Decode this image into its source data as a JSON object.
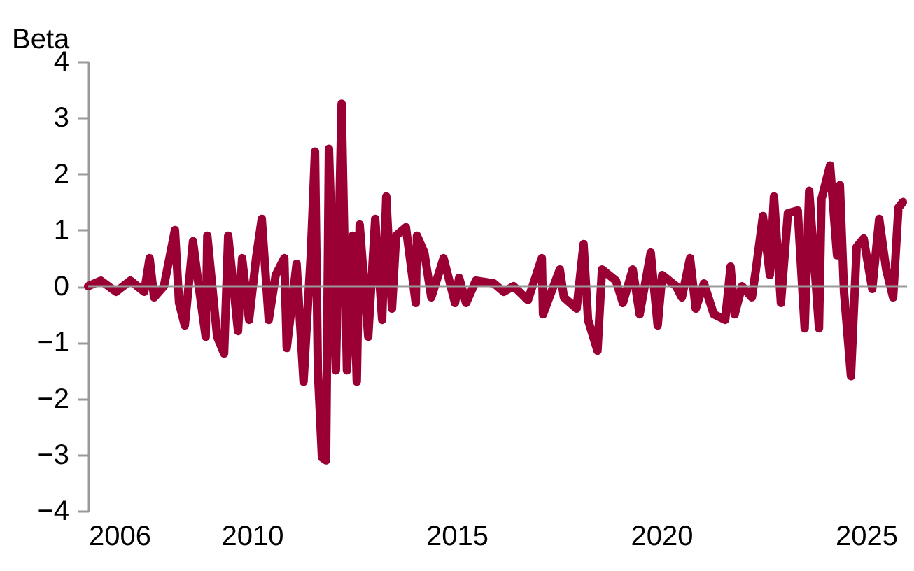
{
  "chart_data": {
    "type": "line",
    "ylabel": "Beta",
    "xlim": [
      2006,
      2026
    ],
    "xticks": [
      2006,
      2010,
      2015,
      2020,
      2025
    ],
    "ylim": [
      -4,
      4
    ],
    "yticks": [
      -4,
      -3,
      -2,
      -1,
      0,
      1,
      2,
      3,
      4
    ],
    "grid": false,
    "marker": "none",
    "line_style": "solid",
    "ref_lines": [
      {
        "axis": "y",
        "value": 0,
        "color": "#999999"
      }
    ],
    "series": [
      {
        "color": "#9b0035",
        "x": [
          2006.0,
          2006.31,
          2006.68,
          2007.03,
          2007.37,
          2007.5,
          2007.61,
          2007.85,
          2008.12,
          2008.22,
          2008.36,
          2008.56,
          2008.7,
          2008.87,
          2008.91,
          2009.15,
          2009.32,
          2009.42,
          2009.66,
          2009.76,
          2009.93,
          2010.1,
          2010.24,
          2010.41,
          2010.58,
          2010.79,
          2010.85,
          2011.09,
          2011.26,
          2011.44,
          2011.54,
          2011.61,
          2011.71,
          2011.81,
          2011.88,
          2012.05,
          2012.19,
          2012.32,
          2012.46,
          2012.56,
          2012.63,
          2012.84,
          2013.01,
          2013.18,
          2013.28,
          2013.42,
          2013.52,
          2013.76,
          2014.0,
          2014.03,
          2014.21,
          2014.38,
          2014.68,
          2014.96,
          2015.06,
          2015.23,
          2015.47,
          2015.91,
          2016.15,
          2016.39,
          2016.74,
          2017.08,
          2017.11,
          2017.52,
          2017.62,
          2017.93,
          2018.1,
          2018.21,
          2018.44,
          2018.55,
          2018.89,
          2019.06,
          2019.3,
          2019.47,
          2019.74,
          2019.91,
          2020.02,
          2020.36,
          2020.5,
          2020.7,
          2020.84,
          2021.04,
          2021.28,
          2021.56,
          2021.69,
          2021.79,
          2021.97,
          2022.21,
          2022.31,
          2022.48,
          2022.65,
          2022.75,
          2022.92,
          2023.09,
          2023.33,
          2023.5,
          2023.61,
          2023.85,
          2023.91,
          2024.12,
          2024.29,
          2024.36,
          2024.46,
          2024.63,
          2024.77,
          2024.94,
          2025.15,
          2025.32,
          2025.49,
          2025.66,
          2025.79,
          2025.9
        ],
        "values": [
          0,
          0.1,
          -0.1,
          0.1,
          -0.1,
          0.5,
          -0.2,
          0,
          1.0,
          -0.3,
          -0.7,
          0.8,
          0,
          -0.9,
          0.9,
          -0.9,
          -1.2,
          0.9,
          -0.8,
          0.5,
          -0.6,
          0.5,
          1.2,
          -0.6,
          0.2,
          0.5,
          -1.1,
          0.4,
          -1.7,
          0.6,
          2.4,
          -1.5,
          -3.05,
          -3.1,
          2.45,
          -1.5,
          3.25,
          -1.5,
          0.9,
          -1.7,
          1.1,
          -0.9,
          1.2,
          -0.6,
          1.6,
          -0.4,
          0.9,
          1.05,
          -0.3,
          0.9,
          0.6,
          -0.2,
          0.5,
          -0.3,
          0.15,
          -0.3,
          0.1,
          0.05,
          -0.1,
          0,
          -0.25,
          0.5,
          -0.5,
          0.3,
          -0.2,
          -0.4,
          0.75,
          -0.6,
          -1.15,
          0.3,
          0.1,
          -0.3,
          0.3,
          -0.5,
          0.6,
          -0.7,
          0.2,
          0,
          -0.2,
          0.5,
          -0.4,
          0.05,
          -0.5,
          -0.6,
          0.35,
          -0.5,
          0,
          -0.2,
          0.3,
          1.25,
          0.2,
          1.6,
          -0.3,
          1.3,
          1.35,
          -0.75,
          1.7,
          -0.75,
          1.55,
          2.15,
          0.55,
          1.8,
          -0.1,
          -1.6,
          0.7,
          0.85,
          -0.05,
          1.2,
          0.3,
          -0.2,
          1.4,
          1.5
        ]
      }
    ]
  }
}
